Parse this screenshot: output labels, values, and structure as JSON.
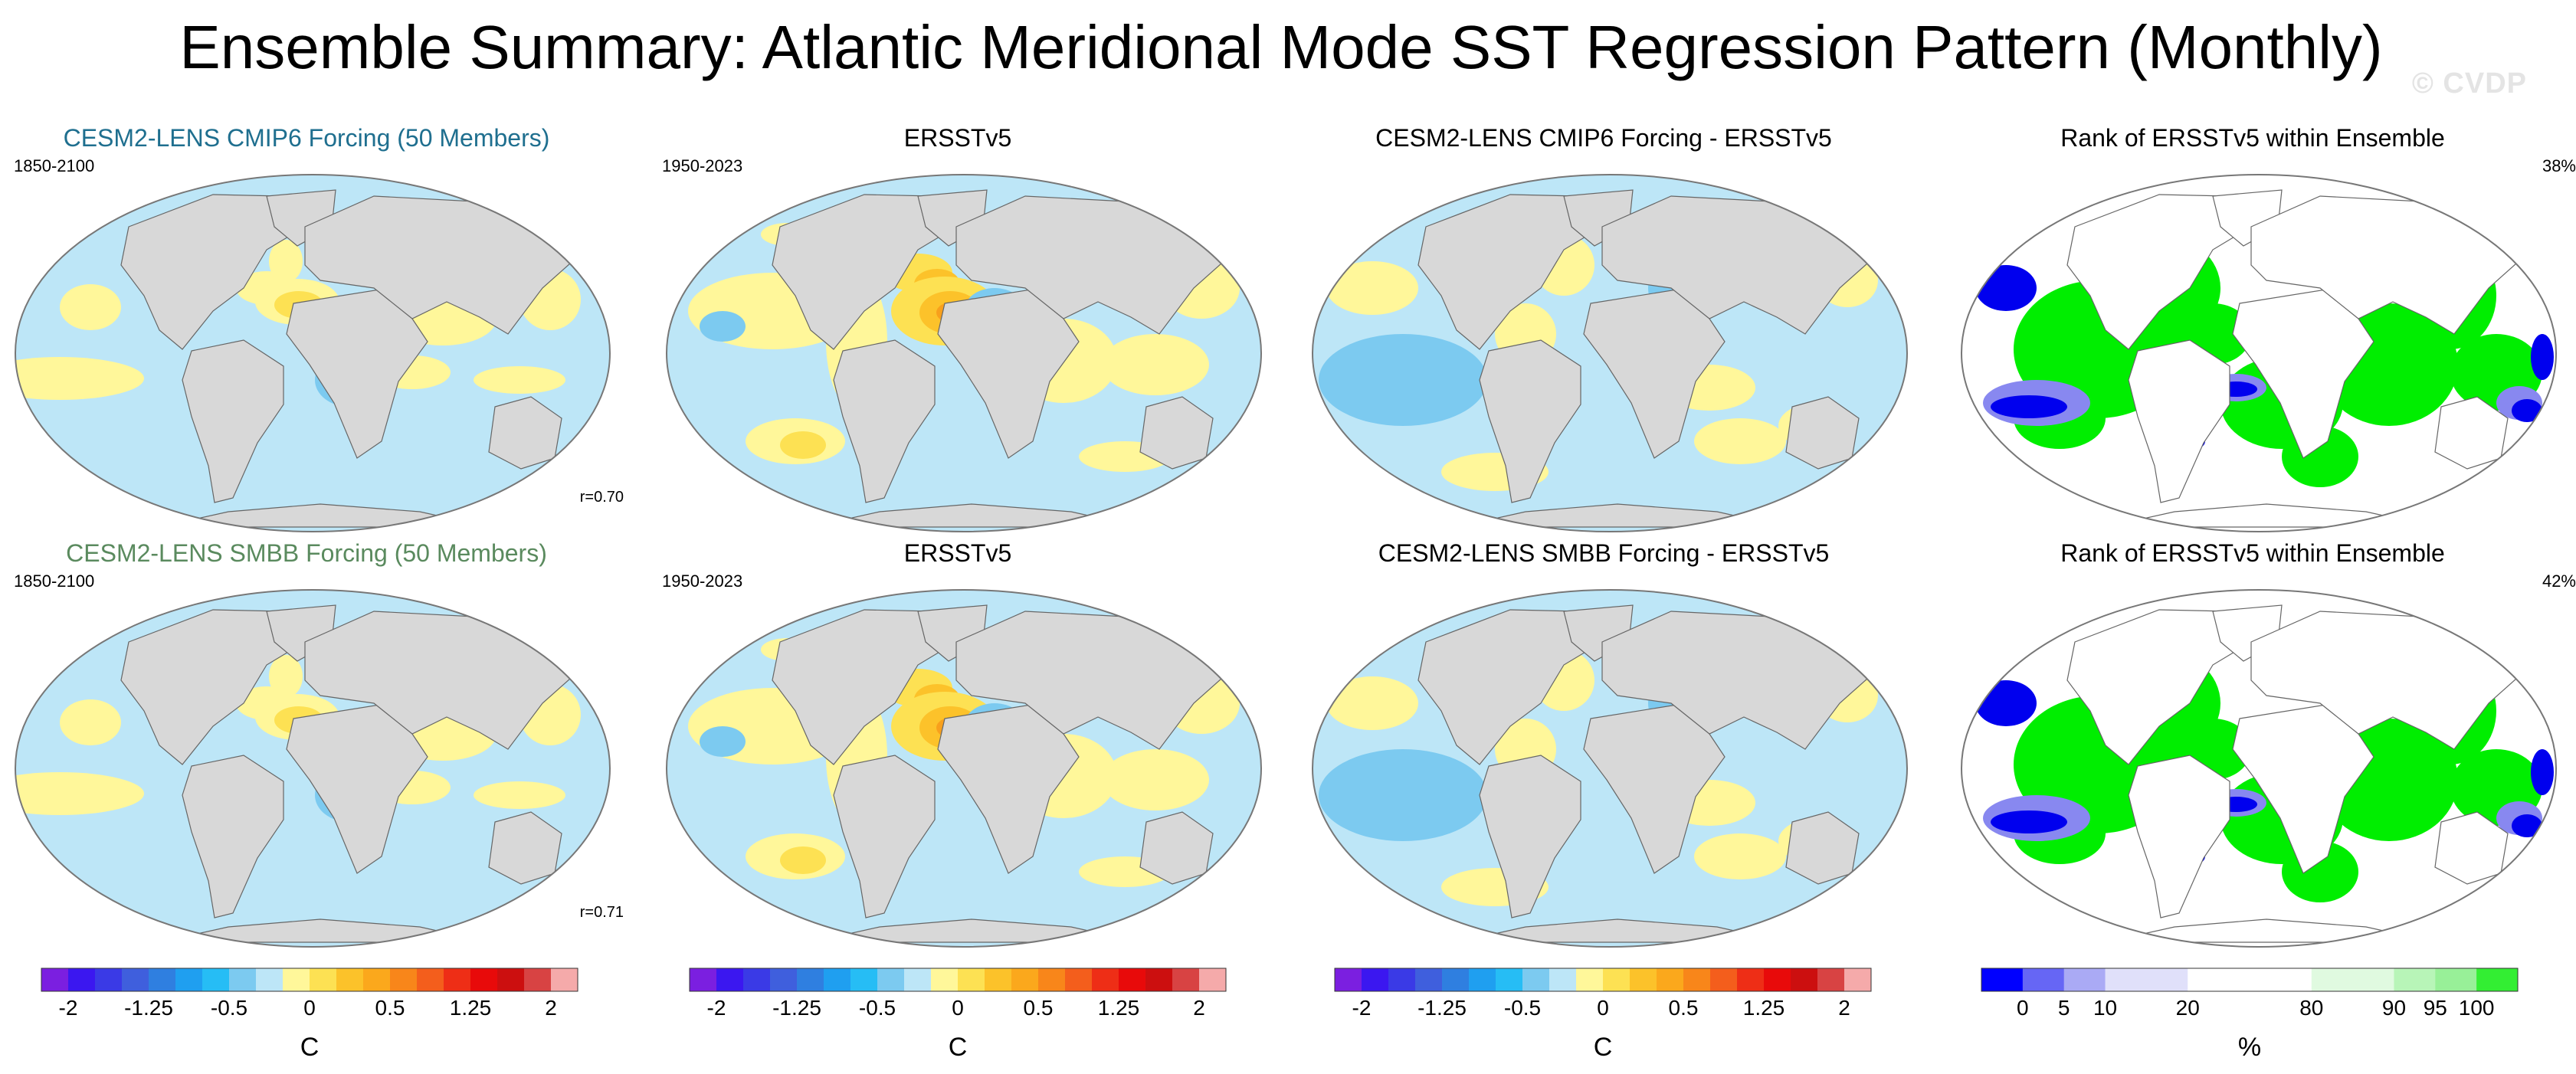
{
  "title": "Ensemble Summary: Atlantic Meridional Mode SST Regression Pattern (Monthly)",
  "watermark": "© CVDP",
  "panels": [
    {
      "title": "CESM2-LENS CMIP6 Forcing (50 Members)",
      "years": "1850-2100",
      "corr": "r=0.70",
      "kind": "model"
    },
    {
      "title": "ERSSTv5",
      "years": "1950-2023",
      "kind": "obs"
    },
    {
      "title": "CESM2-LENS CMIP6 Forcing - ERSSTv5",
      "kind": "diff"
    },
    {
      "title": "Rank of ERSSTv5 within Ensemble",
      "pct": "38%",
      "kind": "rank"
    },
    {
      "title": "CESM2-LENS SMBB Forcing (50 Members)",
      "years": "1850-2100",
      "corr": "r=0.71",
      "kind": "model"
    },
    {
      "title": "ERSSTv5",
      "years": "1950-2023",
      "kind": "obs"
    },
    {
      "title": "CESM2-LENS SMBB Forcing - ERSSTv5",
      "kind": "diff"
    },
    {
      "title": "Rank of ERSSTv5 within Ensemble",
      "pct": "42%",
      "kind": "rank"
    }
  ],
  "colorbars": {
    "sst": {
      "colors": [
        "#7b1fe0",
        "#3b17f0",
        "#3a3ae6",
        "#3f5fdd",
        "#2f7fe0",
        "#1f9ff0",
        "#26bdf5",
        "#7ccaf0",
        "#bde6f7",
        "#fff79a",
        "#fde153",
        "#fcc22a",
        "#fba81c",
        "#f8861a",
        "#f45e1c",
        "#ee2e16",
        "#e80a0a",
        "#cc0f0f",
        "#d84343",
        "#f5aaaa"
      ],
      "ticks": [
        "-2",
        "-1.25",
        "-0.5",
        "0",
        "0.5",
        "1.25",
        "2"
      ],
      "tick_positions": [
        1,
        4,
        7,
        10,
        13,
        16,
        19
      ],
      "unit": "C"
    },
    "rank": {
      "colors": [
        "#0000ff",
        "#6666f5",
        "#aaaaf5",
        "#e0e0fa",
        "#e0e0fa",
        "#ffffff",
        "#ffffff",
        "#ffffff",
        "#e0fae0",
        "#e0fae0",
        "#b8f5b8",
        "#98f098",
        "#33ee33"
      ],
      "ticks": [
        "0",
        "5",
        "10",
        "20",
        "80",
        "90",
        "95",
        "100"
      ],
      "tick_positions": [
        1,
        2,
        3,
        5,
        8,
        10,
        11,
        12
      ],
      "unit": "%"
    }
  },
  "colors": {
    "land": "#d8d8d8",
    "ocean_background": "#bde6f7",
    "warm1": "#fff79a",
    "warm2": "#fde153",
    "warm3": "#fcc22a",
    "warm4": "#f8a01c",
    "cool1": "#7ccaf0",
    "cool2": "#26bdf5",
    "rank_green": "#00ee00",
    "rank_blue": "#0000ee",
    "rank_lightblue": "#8888f0"
  }
}
